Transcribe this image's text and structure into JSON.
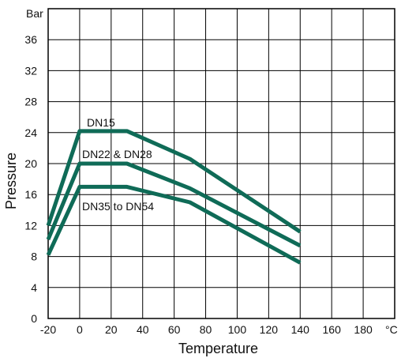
{
  "chart_data": {
    "type": "line",
    "title": "",
    "xlabel": "Temperature",
    "ylabel": "Pressure",
    "x_unit": "°C",
    "y_unit": "Bar",
    "xlim": [
      -20,
      200
    ],
    "ylim": [
      0,
      40
    ],
    "x_ticks": [
      -20,
      0,
      20,
      40,
      60,
      80,
      100,
      120,
      140,
      160,
      180
    ],
    "y_ticks": [
      0,
      4,
      8,
      12,
      16,
      20,
      24,
      28,
      32,
      36
    ],
    "grid": true,
    "line_color": "#0f6b57",
    "series": [
      {
        "name": "DN15",
        "points": [
          [
            -20,
            12.0
          ],
          [
            0,
            24.2
          ],
          [
            30,
            24.2
          ],
          [
            70,
            20.6
          ],
          [
            140,
            11.2
          ]
        ]
      },
      {
        "name": "DN22 & DN28",
        "points": [
          [
            -20,
            10.2
          ],
          [
            0,
            20.0
          ],
          [
            30,
            20.0
          ],
          [
            70,
            16.8
          ],
          [
            140,
            9.4
          ]
        ]
      },
      {
        "name": "DN35 to DN54",
        "points": [
          [
            -20,
            8.2
          ],
          [
            0,
            17.0
          ],
          [
            30,
            17.0
          ],
          [
            70,
            15.0
          ],
          [
            140,
            7.2
          ]
        ]
      }
    ]
  }
}
